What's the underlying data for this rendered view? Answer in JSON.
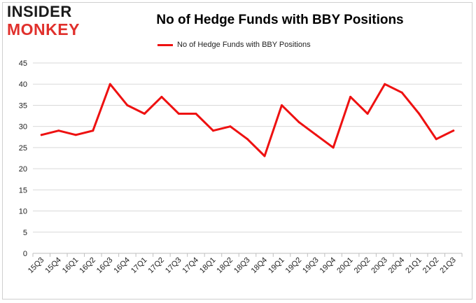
{
  "logo": {
    "line1": "INSIDER",
    "line2": "MONKEY"
  },
  "chart_data": {
    "type": "line",
    "title": "No of Hedge Funds with BBY Positions",
    "xlabel": "",
    "ylabel": "",
    "categories": [
      "15Q3",
      "15Q4",
      "16Q1",
      "16Q2",
      "16Q3",
      "16Q4",
      "17Q1",
      "17Q2",
      "17Q3",
      "17Q4",
      "18Q1",
      "18Q2",
      "18Q3",
      "18Q4",
      "19Q1",
      "19Q2",
      "19Q3",
      "19Q4",
      "20Q1",
      "20Q2",
      "20Q3",
      "20Q4",
      "21Q1",
      "21Q2",
      "21Q3"
    ],
    "series": [
      {
        "name": "No of Hedge Funds with BBY Positions",
        "color": "#ee1111",
        "values": [
          28,
          29,
          28,
          29,
          40,
          35,
          33,
          37,
          33,
          33,
          29,
          30,
          27,
          23,
          35,
          31,
          28,
          25,
          37,
          33,
          40,
          38,
          33,
          27,
          29
        ]
      }
    ],
    "ylim": [
      0,
      45
    ],
    "yticks": [
      0,
      5,
      10,
      15,
      20,
      25,
      30,
      35,
      40,
      45
    ],
    "grid": true,
    "legend_position": "top-center"
  }
}
